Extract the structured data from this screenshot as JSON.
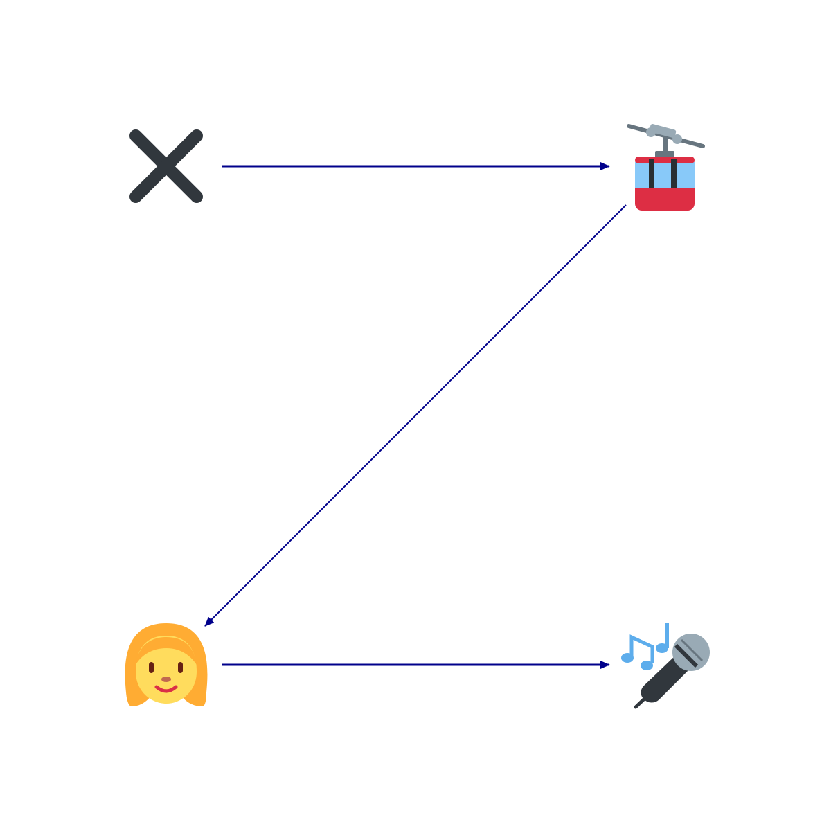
{
  "diagram": {
    "background_color": "#ffffff",
    "edge_color": "#00008b",
    "nodes": [
      {
        "id": "cross",
        "icon": "cross-mark-icon"
      },
      {
        "id": "tramway",
        "icon": "aerial-tramway-icon"
      },
      {
        "id": "woman",
        "icon": "woman-face-icon"
      },
      {
        "id": "microphone",
        "icon": "microphone-with-music-notes-icon"
      }
    ],
    "edges": [
      {
        "from": "cross",
        "to": "tramway"
      },
      {
        "from": "tramway",
        "to": "woman"
      },
      {
        "from": "woman",
        "to": "microphone"
      }
    ]
  }
}
